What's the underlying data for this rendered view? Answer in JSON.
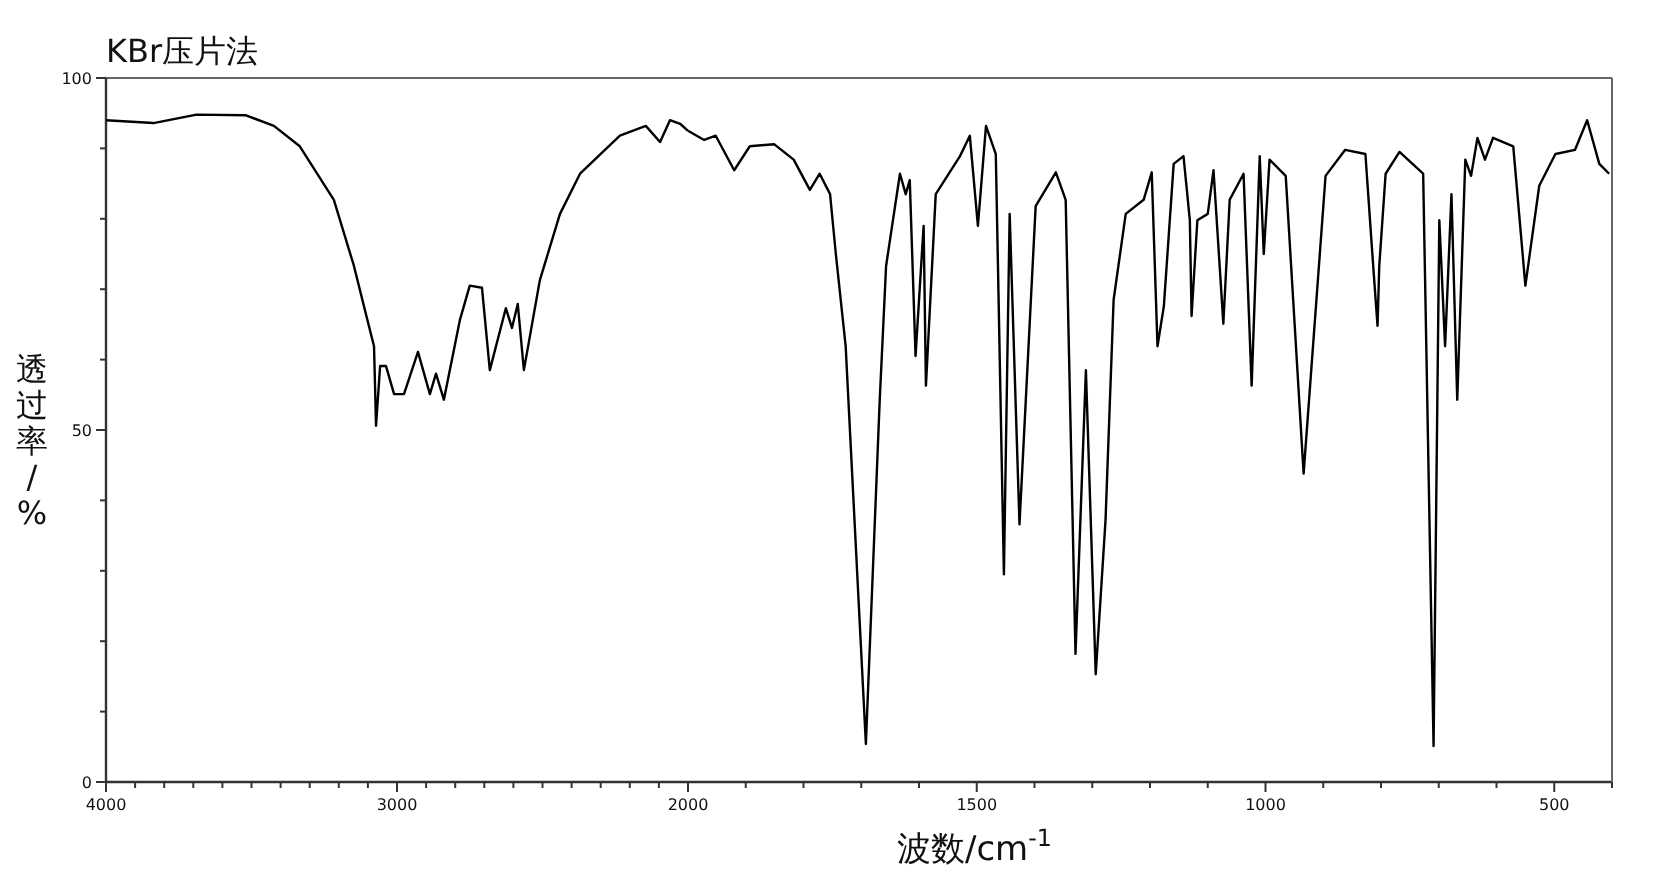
{
  "chart_data": [
    {
      "type": "line",
      "title": "KBr压片法",
      "ylabel": "透过率/%",
      "color": "#000000",
      "xlim": [
        4000,
        2000
      ],
      "ylim": [
        0,
        100
      ],
      "xticks": [
        4000,
        {
          "value": 3900,
          "label": null
        },
        {
          "value": 3800,
          "label": null
        },
        {
          "value": 3700,
          "label": null
        },
        {
          "value": 3600,
          "label": null
        },
        {
          "value": 3500,
          "label": null
        },
        {
          "value": 3400,
          "label": null
        },
        {
          "value": 3300,
          "label": null
        },
        {
          "value": 3200,
          "label": null
        },
        {
          "value": 3100,
          "label": null
        },
        3000,
        {
          "value": 2900,
          "label": null
        },
        {
          "value": 2800,
          "label": null
        },
        {
          "value": 2700,
          "label": null
        },
        {
          "value": 2600,
          "label": null
        },
        {
          "value": 2500,
          "label": null
        },
        {
          "value": 2400,
          "label": null
        },
        {
          "value": 2300,
          "label": null
        },
        {
          "value": 2200,
          "label": null
        },
        {
          "value": 2100,
          "label": null
        },
        2000
      ],
      "yticks": [
        0,
        {
          "value": 10,
          "label": null
        },
        {
          "value": 20,
          "label": null
        },
        {
          "value": 30,
          "label": null
        },
        {
          "value": 40,
          "label": null
        },
        50,
        {
          "value": 60,
          "label": null
        },
        {
          "value": 70,
          "label": null
        },
        {
          "value": 80,
          "label": null
        },
        {
          "value": 90,
          "label": null
        },
        100
      ],
      "x": [
        4000,
        3837,
        3689,
        3519,
        3423,
        3334,
        3217,
        3148,
        3107,
        3079,
        3072,
        3058,
        3038,
        3010,
        2976,
        2928,
        2887,
        2866,
        2839,
        2784,
        2750,
        2708,
        2681,
        2626,
        2605,
        2585,
        2564,
        2509,
        2440,
        2371,
        2234,
        2145,
        2096,
        2062,
        2027,
        2000
      ],
      "values": [
        94.0,
        93.6,
        94.8,
        94.7,
        93.2,
        90.3,
        82.7,
        73.3,
        66.5,
        61.9,
        50.6,
        59.1,
        59.1,
        55.1,
        55.1,
        61.1,
        55.1,
        58.0,
        54.3,
        65.6,
        70.5,
        70.2,
        58.5,
        67.3,
        64.5,
        67.9,
        58.5,
        71.3,
        80.7,
        86.4,
        91.8,
        93.2,
        90.9,
        94.0,
        93.5,
        92.5
      ]
    },
    {
      "type": "line",
      "xlabel": "波数/cm$^{-1}$",
      "color": "#000000",
      "tick_labels": "x",
      "xlim": [
        2000,
        400
      ],
      "ylim": [
        0,
        100
      ],
      "xticks": [
        {
          "value": 1900,
          "label": null
        },
        {
          "value": 1800,
          "label": null
        },
        {
          "value": 1700,
          "label": null
        },
        {
          "value": 1600,
          "label": null
        },
        1500,
        {
          "value": 1400,
          "label": null
        },
        {
          "value": 1300,
          "label": null
        },
        {
          "value": 1200,
          "label": null
        },
        {
          "value": 1100,
          "label": null
        },
        1000,
        {
          "value": 900,
          "label": null
        },
        {
          "value": 800,
          "label": null
        },
        {
          "value": 700,
          "label": null
        },
        {
          "value": 600,
          "label": null
        },
        500,
        {
          "value": 400,
          "label": null
        }
      ],
      "x": [
        2000,
        1972,
        1952,
        1920,
        1893,
        1851,
        1817,
        1789,
        1772,
        1754,
        1744,
        1727,
        1692,
        1668,
        1657,
        1633,
        1623,
        1616,
        1606,
        1592,
        1588,
        1571,
        1529,
        1512,
        1498,
        1484,
        1467,
        1453,
        1443,
        1426,
        1398,
        1363,
        1346,
        1329,
        1311,
        1294,
        1277,
        1263,
        1242,
        1211,
        1197,
        1187,
        1176,
        1159,
        1142,
        1131,
        1128,
        1118,
        1100,
        1090,
        1073,
        1062,
        1038,
        1024,
        1010,
        1003,
        993,
        965,
        934,
        896,
        862,
        827,
        813,
        806,
        803,
        792,
        768,
        727,
        709,
        699,
        689,
        678,
        668,
        654,
        644,
        633,
        620,
        606,
        571,
        550,
        526,
        498,
        464,
        443,
        422,
        405
      ],
      "values": [
        92.5,
        91.2,
        91.8,
        86.9,
        90.3,
        90.6,
        88.4,
        84.1,
        86.4,
        83.5,
        75.0,
        61.9,
        5.4,
        54.3,
        73.3,
        86.4,
        83.5,
        85.5,
        60.5,
        79.0,
        56.3,
        83.5,
        88.9,
        91.8,
        79.0,
        93.2,
        89.2,
        29.5,
        80.7,
        36.6,
        81.8,
        86.6,
        82.7,
        18.2,
        58.5,
        15.3,
        37.2,
        68.5,
        80.7,
        82.7,
        86.6,
        61.9,
        67.6,
        87.8,
        88.9,
        79.8,
        66.2,
        79.8,
        80.7,
        86.9,
        65.1,
        82.7,
        86.4,
        56.3,
        88.9,
        75.0,
        88.4,
        86.1,
        43.8,
        86.1,
        89.8,
        89.2,
        72.7,
        64.8,
        73.3,
        86.4,
        89.5,
        86.4,
        5.1,
        79.8,
        61.9,
        83.5,
        54.3,
        88.4,
        86.1,
        91.5,
        88.4,
        91.5,
        90.3,
        70.5,
        84.7,
        89.2,
        89.8,
        94.0,
        87.8,
        86.4
      ]
    }
  ]
}
